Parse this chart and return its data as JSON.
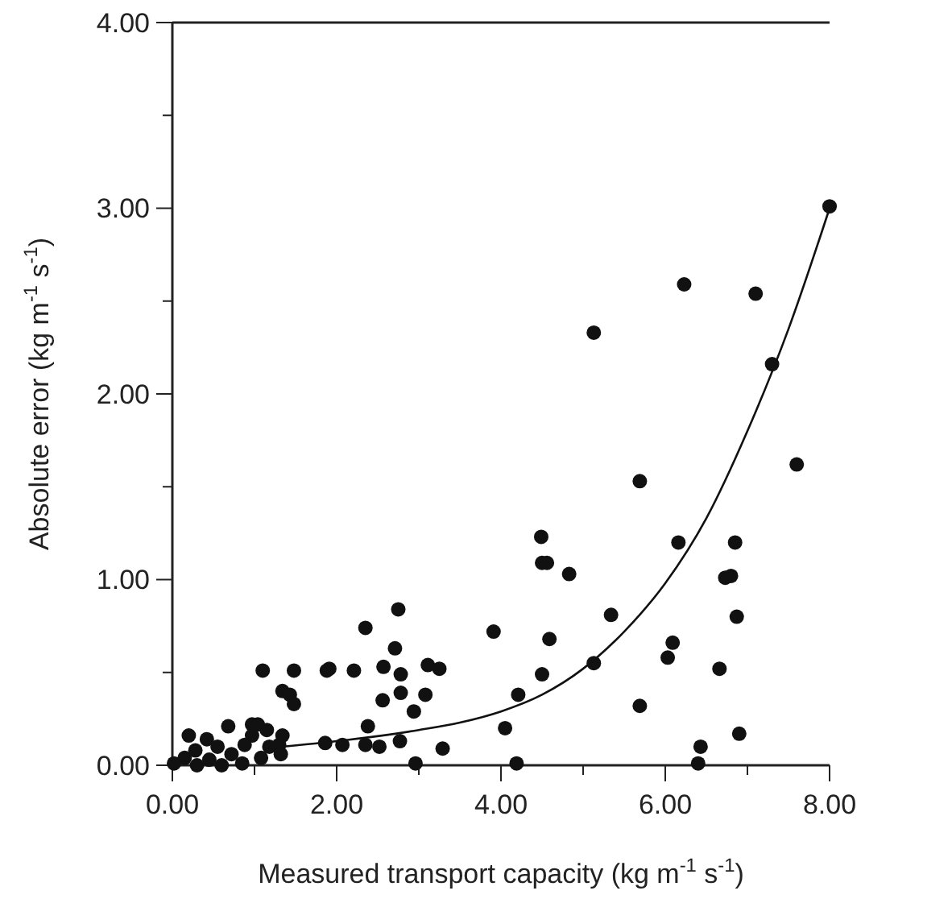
{
  "chart_data": {
    "type": "scatter",
    "xlabel": "Measured transport capacity (kg m$^{-1}$ s$^{-1}$)",
    "ylabel": "Absolute error (kg m$^{-1}$ s$^{-1}$)",
    "xlim": [
      0,
      8
    ],
    "ylim": [
      0,
      4
    ],
    "xticks": [
      {
        "value": 0,
        "label": "0.00"
      },
      {
        "value": 1,
        "label": null
      },
      {
        "value": 2,
        "label": "2.00"
      },
      {
        "value": 3,
        "label": null
      },
      {
        "value": 4,
        "label": "4.00"
      },
      {
        "value": 5,
        "label": null
      },
      {
        "value": 6,
        "label": "6.00"
      },
      {
        "value": 7,
        "label": null
      },
      {
        "value": 8,
        "label": "8.00"
      }
    ],
    "yticks": [
      {
        "value": 0,
        "label": "0.00"
      },
      {
        "value": 0.5,
        "label": null
      },
      {
        "value": 1,
        "label": "1.00"
      },
      {
        "value": 1.5,
        "label": null
      },
      {
        "value": 2,
        "label": "2.00"
      },
      {
        "value": 2.5,
        "label": null
      },
      {
        "value": 3,
        "label": "3.00"
      },
      {
        "value": 3.5,
        "label": null
      },
      {
        "value": 4,
        "label": "4.00"
      }
    ],
    "grid": false,
    "series": [
      {
        "color": "#111111",
        "marker": "circle",
        "x": [
          8.0,
          7.1,
          7.3,
          7.6,
          6.23,
          5.13,
          5.69,
          4.49,
          4.5,
          4.56,
          4.83,
          6.16,
          6.85,
          6.73,
          6.8,
          6.87,
          3.91,
          4.59,
          5.34,
          5.13,
          4.5,
          4.21,
          6.09,
          6.03,
          6.66,
          5.69,
          4.05,
          4.19,
          6.43,
          6.4,
          6.9,
          1.1,
          1.48,
          1.34,
          1.43,
          1.48,
          0.68,
          0.97,
          1.04,
          0.97,
          1.15,
          1.34,
          1.18,
          1.3,
          1.32,
          1.08,
          2.35,
          2.75,
          2.71,
          1.88,
          1.91,
          2.21,
          2.57,
          2.78,
          3.11,
          3.25,
          2.78,
          3.08,
          2.56,
          2.94,
          2.38,
          1.86,
          2.07,
          2.35,
          2.52,
          2.77,
          2.96,
          3.29,
          0.42,
          0.02,
          0.15,
          0.28,
          0.3,
          0.45,
          0.55,
          0.6,
          0.72,
          0.85,
          0.88,
          0.2
        ],
        "values": [
          3.01,
          2.54,
          2.16,
          1.62,
          2.59,
          2.33,
          1.53,
          1.23,
          1.09,
          1.09,
          1.03,
          1.2,
          1.2,
          1.01,
          1.02,
          0.8,
          0.72,
          0.68,
          0.81,
          0.55,
          0.49,
          0.38,
          0.66,
          0.58,
          0.52,
          0.32,
          0.2,
          0.01,
          0.1,
          0.01,
          0.17,
          0.51,
          0.51,
          0.4,
          0.38,
          0.33,
          0.21,
          0.22,
          0.22,
          0.16,
          0.19,
          0.16,
          0.1,
          0.11,
          0.06,
          0.04,
          0.74,
          0.84,
          0.63,
          0.51,
          0.52,
          0.51,
          0.53,
          0.49,
          0.54,
          0.52,
          0.39,
          0.38,
          0.35,
          0.29,
          0.21,
          0.12,
          0.11,
          0.11,
          0.1,
          0.13,
          0.01,
          0.09,
          0.14,
          0.01,
          0.04,
          0.08,
          0.0,
          0.03,
          0.1,
          0.0,
          0.06,
          0.01,
          0.11,
          0.16
        ]
      },
      {
        "type": "line",
        "color": "#111111",
        "marker": "none",
        "line_style": "solid",
        "x": [
          1.1,
          2,
          3,
          3.5,
          4,
          4.5,
          5,
          5.5,
          6,
          6.5,
          7,
          7.5,
          8
        ],
        "values": [
          0.09,
          0.13,
          0.19,
          0.23,
          0.29,
          0.38,
          0.52,
          0.72,
          0.98,
          1.33,
          1.8,
          2.35,
          3.0
        ]
      }
    ]
  }
}
